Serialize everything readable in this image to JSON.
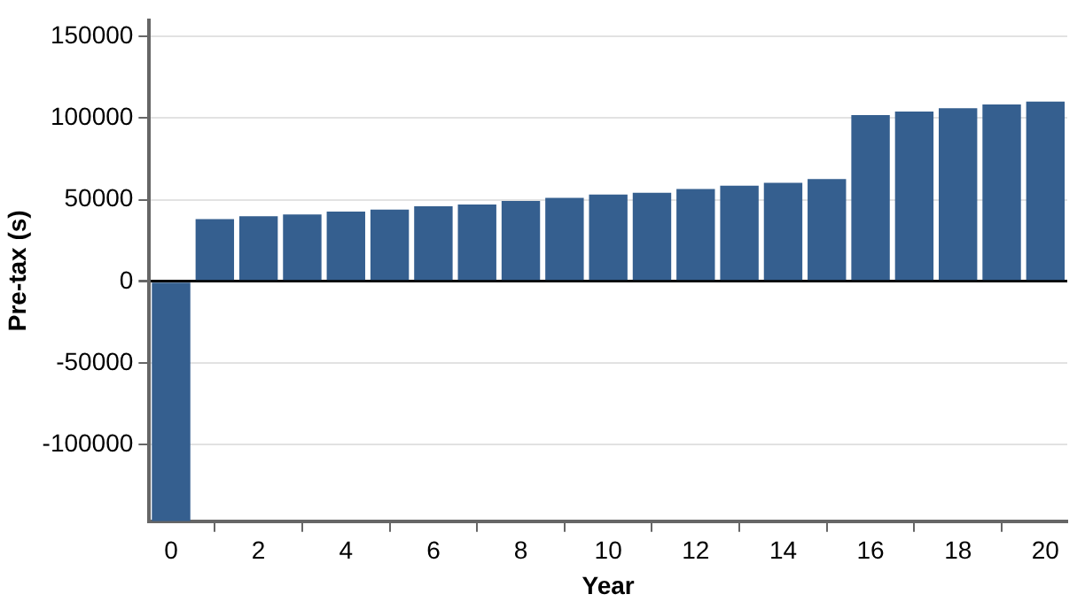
{
  "chart_data": {
    "type": "bar",
    "xlabel": "Year",
    "ylabel": "Pre-tax (s)",
    "x": [
      0,
      1,
      2,
      3,
      4,
      5,
      6,
      7,
      8,
      9,
      10,
      11,
      12,
      13,
      14,
      15,
      16,
      17,
      18,
      19,
      20
    ],
    "values": [
      -147000,
      38100,
      39900,
      41000,
      42800,
      43900,
      46000,
      47100,
      49300,
      51100,
      53200,
      54300,
      56500,
      58600,
      60400,
      62600,
      101800,
      104000,
      106100,
      108300,
      110100
    ],
    "color": "#355f8f",
    "xlim": [
      -0.5,
      20.5
    ],
    "xticks": [
      0,
      2,
      4,
      6,
      8,
      10,
      12,
      14,
      16,
      18,
      20
    ],
    "ylim": [
      -147000,
      160000
    ],
    "yticks": [
      -100000,
      -50000,
      0,
      50000,
      100000,
      150000
    ],
    "grid": "y",
    "legend": false
  }
}
